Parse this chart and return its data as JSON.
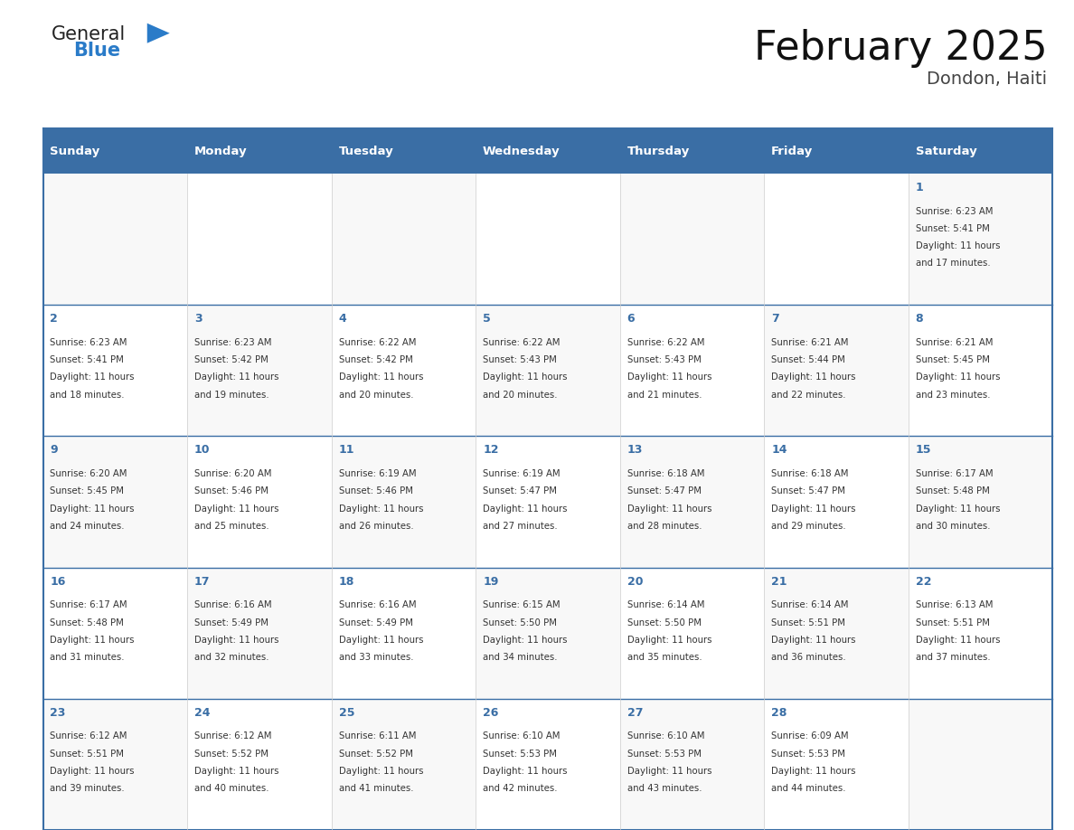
{
  "title": "February 2025",
  "subtitle": "Dondon, Haiti",
  "header_bg": "#3a6ea5",
  "header_text_color": "#ffffff",
  "day_text_color": "#3a6ea5",
  "border_color": "#3a6ea5",
  "days_of_week": [
    "Sunday",
    "Monday",
    "Tuesday",
    "Wednesday",
    "Thursday",
    "Friday",
    "Saturday"
  ],
  "calendar": [
    [
      null,
      null,
      null,
      null,
      null,
      null,
      {
        "day": 1,
        "sunrise": "6:23 AM",
        "sunset": "5:41 PM",
        "daylight_line1": "11 hours",
        "daylight_line2": "and 17 minutes."
      }
    ],
    [
      {
        "day": 2,
        "sunrise": "6:23 AM",
        "sunset": "5:41 PM",
        "daylight_line1": "11 hours",
        "daylight_line2": "and 18 minutes."
      },
      {
        "day": 3,
        "sunrise": "6:23 AM",
        "sunset": "5:42 PM",
        "daylight_line1": "11 hours",
        "daylight_line2": "and 19 minutes."
      },
      {
        "day": 4,
        "sunrise": "6:22 AM",
        "sunset": "5:42 PM",
        "daylight_line1": "11 hours",
        "daylight_line2": "and 20 minutes."
      },
      {
        "day": 5,
        "sunrise": "6:22 AM",
        "sunset": "5:43 PM",
        "daylight_line1": "11 hours",
        "daylight_line2": "and 20 minutes."
      },
      {
        "day": 6,
        "sunrise": "6:22 AM",
        "sunset": "5:43 PM",
        "daylight_line1": "11 hours",
        "daylight_line2": "and 21 minutes."
      },
      {
        "day": 7,
        "sunrise": "6:21 AM",
        "sunset": "5:44 PM",
        "daylight_line1": "11 hours",
        "daylight_line2": "and 22 minutes."
      },
      {
        "day": 8,
        "sunrise": "6:21 AM",
        "sunset": "5:45 PM",
        "daylight_line1": "11 hours",
        "daylight_line2": "and 23 minutes."
      }
    ],
    [
      {
        "day": 9,
        "sunrise": "6:20 AM",
        "sunset": "5:45 PM",
        "daylight_line1": "11 hours",
        "daylight_line2": "and 24 minutes."
      },
      {
        "day": 10,
        "sunrise": "6:20 AM",
        "sunset": "5:46 PM",
        "daylight_line1": "11 hours",
        "daylight_line2": "and 25 minutes."
      },
      {
        "day": 11,
        "sunrise": "6:19 AM",
        "sunset": "5:46 PM",
        "daylight_line1": "11 hours",
        "daylight_line2": "and 26 minutes."
      },
      {
        "day": 12,
        "sunrise": "6:19 AM",
        "sunset": "5:47 PM",
        "daylight_line1": "11 hours",
        "daylight_line2": "and 27 minutes."
      },
      {
        "day": 13,
        "sunrise": "6:18 AM",
        "sunset": "5:47 PM",
        "daylight_line1": "11 hours",
        "daylight_line2": "and 28 minutes."
      },
      {
        "day": 14,
        "sunrise": "6:18 AM",
        "sunset": "5:47 PM",
        "daylight_line1": "11 hours",
        "daylight_line2": "and 29 minutes."
      },
      {
        "day": 15,
        "sunrise": "6:17 AM",
        "sunset": "5:48 PM",
        "daylight_line1": "11 hours",
        "daylight_line2": "and 30 minutes."
      }
    ],
    [
      {
        "day": 16,
        "sunrise": "6:17 AM",
        "sunset": "5:48 PM",
        "daylight_line1": "11 hours",
        "daylight_line2": "and 31 minutes."
      },
      {
        "day": 17,
        "sunrise": "6:16 AM",
        "sunset": "5:49 PM",
        "daylight_line1": "11 hours",
        "daylight_line2": "and 32 minutes."
      },
      {
        "day": 18,
        "sunrise": "6:16 AM",
        "sunset": "5:49 PM",
        "daylight_line1": "11 hours",
        "daylight_line2": "and 33 minutes."
      },
      {
        "day": 19,
        "sunrise": "6:15 AM",
        "sunset": "5:50 PM",
        "daylight_line1": "11 hours",
        "daylight_line2": "and 34 minutes."
      },
      {
        "day": 20,
        "sunrise": "6:14 AM",
        "sunset": "5:50 PM",
        "daylight_line1": "11 hours",
        "daylight_line2": "and 35 minutes."
      },
      {
        "day": 21,
        "sunrise": "6:14 AM",
        "sunset": "5:51 PM",
        "daylight_line1": "11 hours",
        "daylight_line2": "and 36 minutes."
      },
      {
        "day": 22,
        "sunrise": "6:13 AM",
        "sunset": "5:51 PM",
        "daylight_line1": "11 hours",
        "daylight_line2": "and 37 minutes."
      }
    ],
    [
      {
        "day": 23,
        "sunrise": "6:12 AM",
        "sunset": "5:51 PM",
        "daylight_line1": "11 hours",
        "daylight_line2": "and 39 minutes."
      },
      {
        "day": 24,
        "sunrise": "6:12 AM",
        "sunset": "5:52 PM",
        "daylight_line1": "11 hours",
        "daylight_line2": "and 40 minutes."
      },
      {
        "day": 25,
        "sunrise": "6:11 AM",
        "sunset": "5:52 PM",
        "daylight_line1": "11 hours",
        "daylight_line2": "and 41 minutes."
      },
      {
        "day": 26,
        "sunrise": "6:10 AM",
        "sunset": "5:53 PM",
        "daylight_line1": "11 hours",
        "daylight_line2": "and 42 minutes."
      },
      {
        "day": 27,
        "sunrise": "6:10 AM",
        "sunset": "5:53 PM",
        "daylight_line1": "11 hours",
        "daylight_line2": "and 43 minutes."
      },
      {
        "day": 28,
        "sunrise": "6:09 AM",
        "sunset": "5:53 PM",
        "daylight_line1": "11 hours",
        "daylight_line2": "and 44 minutes."
      },
      null
    ]
  ],
  "logo_text1": "General",
  "logo_text2": "Blue",
  "logo_color1": "#222222",
  "logo_color2": "#2a7bc8"
}
